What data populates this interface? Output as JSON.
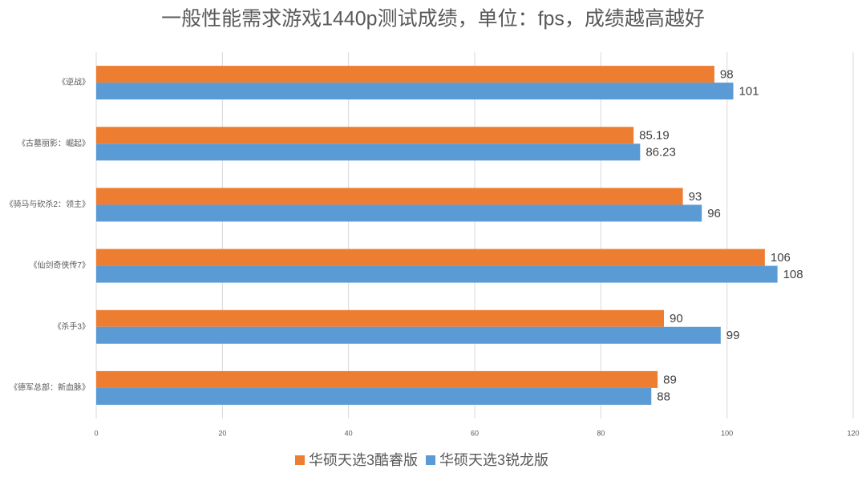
{
  "chart_data": {
    "type": "bar",
    "orientation": "horizontal",
    "title": "一般性能需求游戏1440p测试成绩，单位：fps，成绩越高越好",
    "categories": [
      "《逆战》",
      "《古墓丽影：崛起》",
      "《骑马与砍杀2：领主》",
      "《仙剑奇侠传7》",
      "《杀手3》",
      "《德军总部：新血脉》"
    ],
    "series": [
      {
        "name": "华硕天选3酷睿版",
        "color": "#ed7d31",
        "values": [
          98,
          85.19,
          93,
          106,
          90,
          89
        ]
      },
      {
        "name": "华硕天选3锐龙版",
        "color": "#5b9bd5",
        "values": [
          101,
          86.23,
          96,
          108,
          99,
          88
        ]
      }
    ],
    "xlim": [
      0,
      120
    ],
    "xticks": [
      0,
      20,
      40,
      60,
      80,
      100,
      120
    ],
    "grid": true,
    "legend": "bottom"
  }
}
